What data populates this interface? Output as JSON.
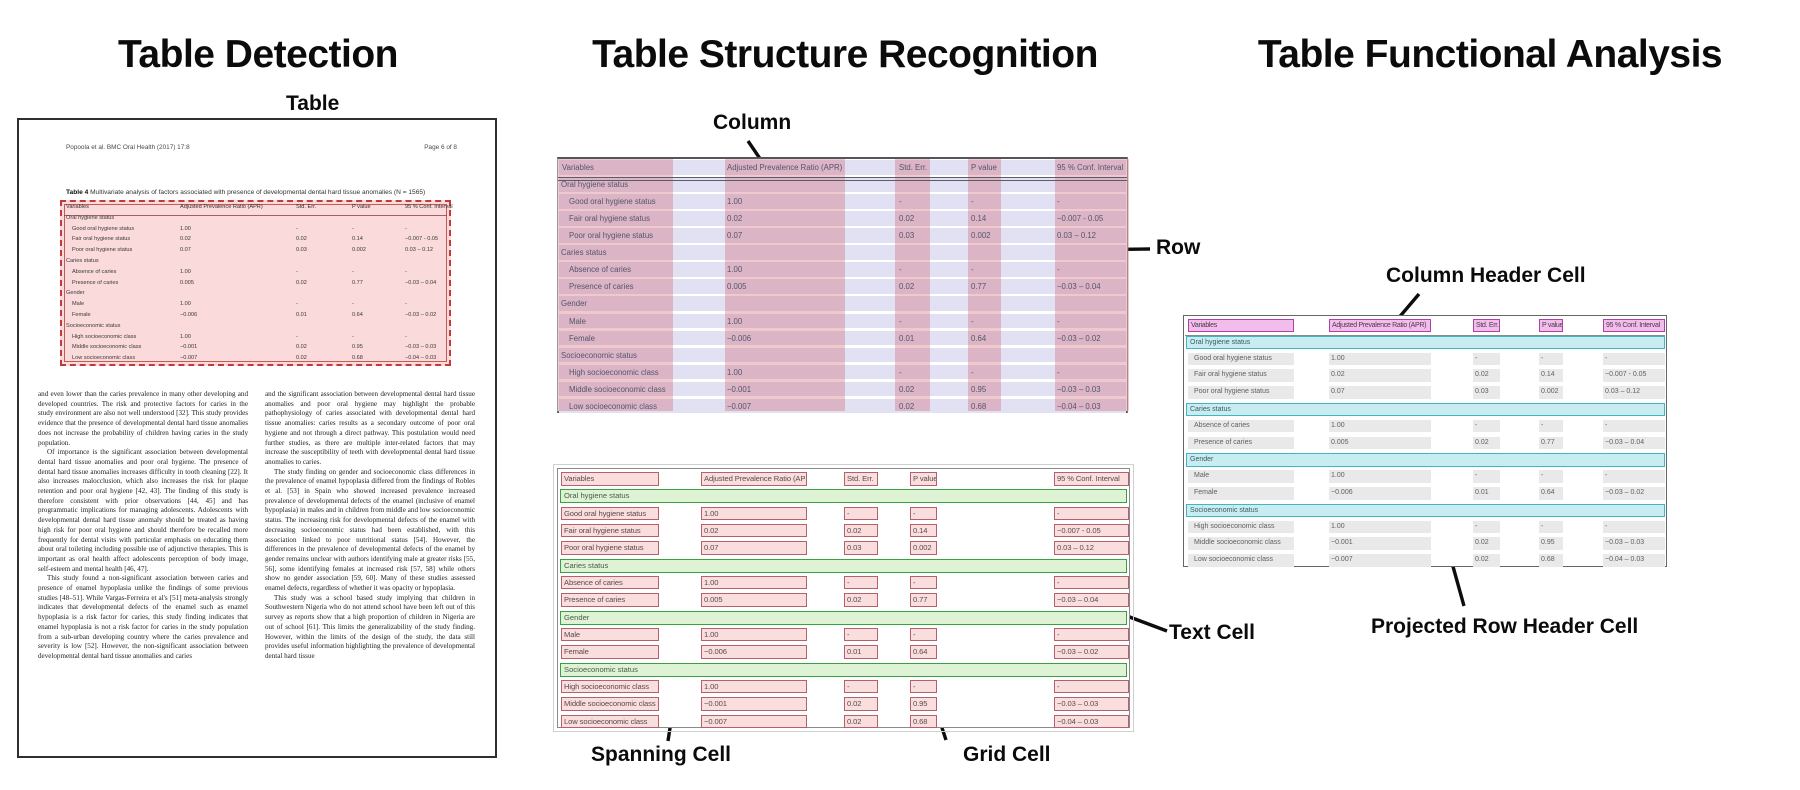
{
  "panels": {
    "detection": {
      "title": "Table Detection",
      "callouts": {
        "table": "Table"
      }
    },
    "structure": {
      "title": "Table Structure Recognition",
      "callouts": {
        "column": "Column",
        "row": "Row",
        "spanning_cell": "Spanning Cell",
        "grid_cell": "Grid Cell",
        "text_cell": "Text Cell"
      }
    },
    "functional": {
      "title": "Table Functional Analysis",
      "callouts": {
        "column_header_cell": "Column Header Cell",
        "projected_row_header_cell": "Projected Row Header Cell"
      }
    }
  },
  "document": {
    "header_left": "Popoola et al. BMC Oral Health  (2017) 17:8",
    "header_right": "Page 6 of 8",
    "caption_label": "Table 4",
    "caption_text": " Multivariate analysis of factors associated with presence of developmental dental hard tissue anomalies (N = 1565)",
    "body_col1": "and even lower than the caries prevalence in many other developing and developed countries. The risk and protective factors for caries in the study environment are also not well understood [32]. This study provides evidence that the presence of developmental dental hard tissue anomalies does not increase the probability of children having caries in the study population.\nOf importance is the significant association between developmental dental hard tissue anomalies and poor oral hygiene. The presence of dental hard tissue anomalies increases difficulty in tooth cleaning [22]. It also increases malocclusion, which also increases the risk for plaque retention and poor oral hygiene [42, 43]. The finding of this study is therefore consistent with prior observations [44, 45] and has programmatic implications for managing adolescents. Adolescents with developmental dental hard tissue anomaly should be treated as having high risk for poor oral hygiene and should therefore be recalled more frequently for dental visits with particular emphasis on educating them about oral toileting including possible use of adjunctive therapies. This is important as oral health affect adolescents perception of body image, self-esteem and mental health [46, 47].\nThis study found a non-significant association between caries and presence of enamel hypoplasia unlike the findings of some previous studies [48–51]. While Vargas-Ferreira et al's [51] meta-analysis strongly indicates that developmental defects of the enamel such as enamel hypoplasia is a risk factor for caries, this study finding indicates that enamel hypoplasia is not a risk factor for caries in the study population from a sub-urban developing country where the caries prevalence and severity is low [52]. However, the non-significant association between developmental dental hard tissue anomalies and caries",
    "body_col2": "and the significant association between developmental dental hard tissue anomalies and poor oral hygiene may highlight the probable pathophysiology of caries associated with developmental dental hard tissue anomalies: caries results as a secondary outcome of poor oral hygiene and not through a direct pathway. This postulation would need further studies, as there are multiple inter-related factors that may increase the susceptibility of teeth with developmental dental hard tissue anomalies to caries.\nThe study finding on gender and socioeconomic class differences in the prevalence of enamel hypoplasia differed from the findings of Robles et al. [53] in Spain who showed increased prevalence increased prevalence of developmental defects of the enamel (inclusive of enamel hypoplasia) in males and in children from middle and low socioeconomic status. The increasing risk for developmental defects of the enamel with decreasing socioeconomic status had been established, with this association linked to poor nutritional status [54]. However, the differences in the prevalence of developmental defects of the enamel by gender remains unclear with authors identifying male at greater risks [55, 56], some identifying females at increased risk [57, 58] while others show no gender association [59, 60]. Many of these studies assessed enamel defects, regardless of whether it was opacity or hypoplasia.\nThis study was a school based study implying that children in Southwestern Nigeria who do not attend school have been left out of this survey as reports show that a high proportion of children in Nigeria are out of school [61]. This limits the generalizability of the study finding. However, within the limits of the design of the study, the data still provides useful information highlighting the prevalence of developmental dental hard tissue"
  },
  "table": {
    "headers": [
      "Variables",
      "Adjusted Prevalence Ratio (APR)",
      "Std. Err.",
      "P value",
      "95 % Conf. Interval"
    ],
    "rows": [
      {
        "type": "section",
        "label": "Oral hygiene status"
      },
      {
        "type": "data",
        "label": "Good oral hygiene status",
        "apr": "1.00",
        "se": "-",
        "p": "-",
        "ci": "-"
      },
      {
        "type": "data",
        "label": "Fair oral hygiene status",
        "apr": "0.02",
        "se": "0.02",
        "p": "0.14",
        "ci": "−0.007 - 0.05"
      },
      {
        "type": "data",
        "label": "Poor oral hygiene status",
        "apr": "0.07",
        "se": "0.03",
        "p": "0.002",
        "ci": "0.03 – 0.12"
      },
      {
        "type": "section",
        "label": "Caries status"
      },
      {
        "type": "data",
        "label": "Absence of caries",
        "apr": "1.00",
        "se": "-",
        "p": "-",
        "ci": "-"
      },
      {
        "type": "data",
        "label": "Presence of caries",
        "apr": "0.005",
        "se": "0.02",
        "p": "0.77",
        "ci": "−0.03 – 0.04"
      },
      {
        "type": "section",
        "label": "Gender"
      },
      {
        "type": "data",
        "label": "Male",
        "apr": "1.00",
        "se": "-",
        "p": "-",
        "ci": "-"
      },
      {
        "type": "data",
        "label": "Female",
        "apr": "−0.006",
        "se": "0.01",
        "p": "0.64",
        "ci": "−0.03 – 0.02"
      },
      {
        "type": "section",
        "label": "Socioeconomic status"
      },
      {
        "type": "data",
        "label": "High socioeconomic class",
        "apr": "1.00",
        "se": "-",
        "p": "-",
        "ci": "-"
      },
      {
        "type": "data",
        "label": "Middle socioeconomic class",
        "apr": "−0.001",
        "se": "0.02",
        "p": "0.95",
        "ci": "−0.03 – 0.03"
      },
      {
        "type": "data",
        "label": "Low socioeconomic class",
        "apr": "−0.007",
        "se": "0.02",
        "p": "0.68",
        "ci": "−0.04 – 0.03"
      }
    ]
  },
  "colors": {
    "detection_fill": "rgba(243,166,166,0.42)",
    "detection_border": "#c23b3b",
    "row_band": "#e2e0f3",
    "column_stripe": "rgba(206,100,112,0.34)",
    "cell_fill": "#fadddd",
    "cell_border": "#b4616e",
    "spanning_fill": "#ddf3d4",
    "spanning_border": "#3aa043",
    "header_cell_fill": "#f3bdeb",
    "header_cell_border": "#ae41a9",
    "projected_fill": "#c7edf2",
    "projected_border": "#43b4c2",
    "grid_strip_fill": "#e9e9e9"
  }
}
